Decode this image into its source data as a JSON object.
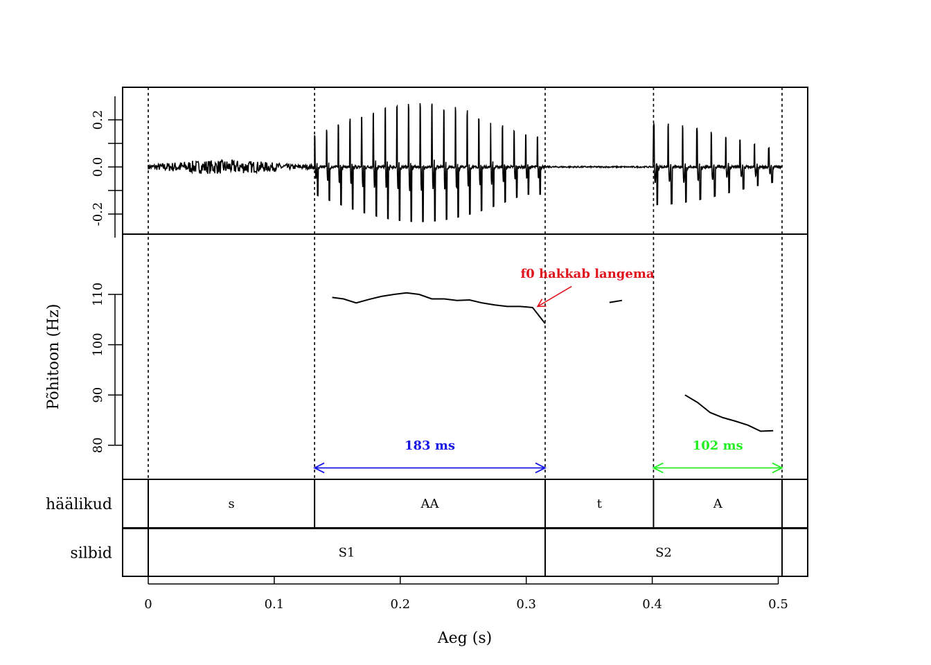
{
  "chart_data": {
    "type": "line",
    "x_axis": {
      "label": "Aeg (s)",
      "range": [
        0,
        0.52
      ],
      "ticks": [
        0,
        0.1,
        0.2,
        0.3,
        0.4,
        0.5
      ],
      "tick_labels": [
        "0",
        "0.1",
        "0.2",
        "0.3",
        "0.4",
        "0.5"
      ]
    },
    "boundaries": [
      0,
      0.132,
      0.315,
      0.401,
      0.503
    ],
    "waveform": {
      "ylim": [
        -0.28,
        0.32
      ],
      "ticks": [
        -0.2,
        -0.1,
        0.0,
        0.1,
        0.2
      ],
      "tick_labels": [
        "-0.2",
        "0.0",
        "0.2"
      ],
      "labeled_ticks": [
        -0.2,
        0.0,
        0.2
      ],
      "segments": [
        {
          "phone": "s",
          "start": 0.0,
          "end": 0.132,
          "kind": "noise",
          "amp": 0.03
        },
        {
          "phone": "AA",
          "start": 0.132,
          "end": 0.315,
          "kind": "voiced",
          "amp": 0.29,
          "period": 0.0093
        },
        {
          "phone": "t",
          "start": 0.315,
          "end": 0.401,
          "kind": "silence",
          "amp": 0.003
        },
        {
          "phone": "A",
          "start": 0.401,
          "end": 0.503,
          "kind": "voiced",
          "amp": 0.2,
          "period": 0.0114
        }
      ]
    },
    "pitch": {
      "ylabel": "Põhitoon (Hz)",
      "ylim": [
        73.5,
        122
      ],
      "ticks": [
        80,
        90,
        100,
        110
      ],
      "tick_labels": [
        "80",
        "90",
        "100",
        "110"
      ],
      "series": [
        {
          "name": "f0-S1",
          "x": [
            0.146,
            0.155,
            0.165,
            0.175,
            0.185,
            0.195,
            0.205,
            0.215,
            0.225,
            0.235,
            0.245,
            0.255,
            0.265,
            0.275,
            0.285,
            0.295,
            0.305,
            0.315
          ],
          "y": [
            109.4,
            109.1,
            108.3,
            109.0,
            109.6,
            110.0,
            110.3,
            110.0,
            109.1,
            109.1,
            108.8,
            108.9,
            108.3,
            107.9,
            107.6,
            107.6,
            107.4,
            104.2
          ]
        },
        {
          "name": "f0-t",
          "x": [
            0.366,
            0.376
          ],
          "y": [
            108.4,
            108.8
          ]
        },
        {
          "name": "f0-S2",
          "x": [
            0.426,
            0.436,
            0.446,
            0.456,
            0.466,
            0.476,
            0.486,
            0.496
          ],
          "y": [
            90.0,
            88.5,
            86.5,
            85.5,
            84.8,
            84.0,
            82.8,
            82.9
          ]
        }
      ]
    },
    "annotations": [
      {
        "text": "f0 hakkab langema",
        "color": "#e0141e",
        "label_at": [
          0.348,
          113.3
        ],
        "arrow_from": [
          0.336,
          111.6
        ],
        "arrow_to": [
          0.309,
          107.6
        ]
      },
      {
        "text": "183 ms",
        "color": "#1414e6",
        "from": 0.132,
        "to": 0.315,
        "y": 75.5,
        "label_y": 80.0
      },
      {
        "text": "102 ms",
        "color": "#22ee22",
        "from": 0.401,
        "to": 0.503,
        "y": 75.5,
        "label_y": 80.0
      }
    ],
    "tiers": [
      {
        "name": "häälikud",
        "segments": [
          {
            "label": "s",
            "start": 0.0,
            "end": 0.132
          },
          {
            "label": "AA",
            "start": 0.132,
            "end": 0.315
          },
          {
            "label": "t",
            "start": 0.315,
            "end": 0.401
          },
          {
            "label": "A",
            "start": 0.401,
            "end": 0.503
          }
        ]
      },
      {
        "name": "silbid",
        "segments": [
          {
            "label": "S1",
            "start": 0.0,
            "end": 0.315
          },
          {
            "label": "S2",
            "start": 0.315,
            "end": 0.503
          }
        ]
      }
    ]
  }
}
